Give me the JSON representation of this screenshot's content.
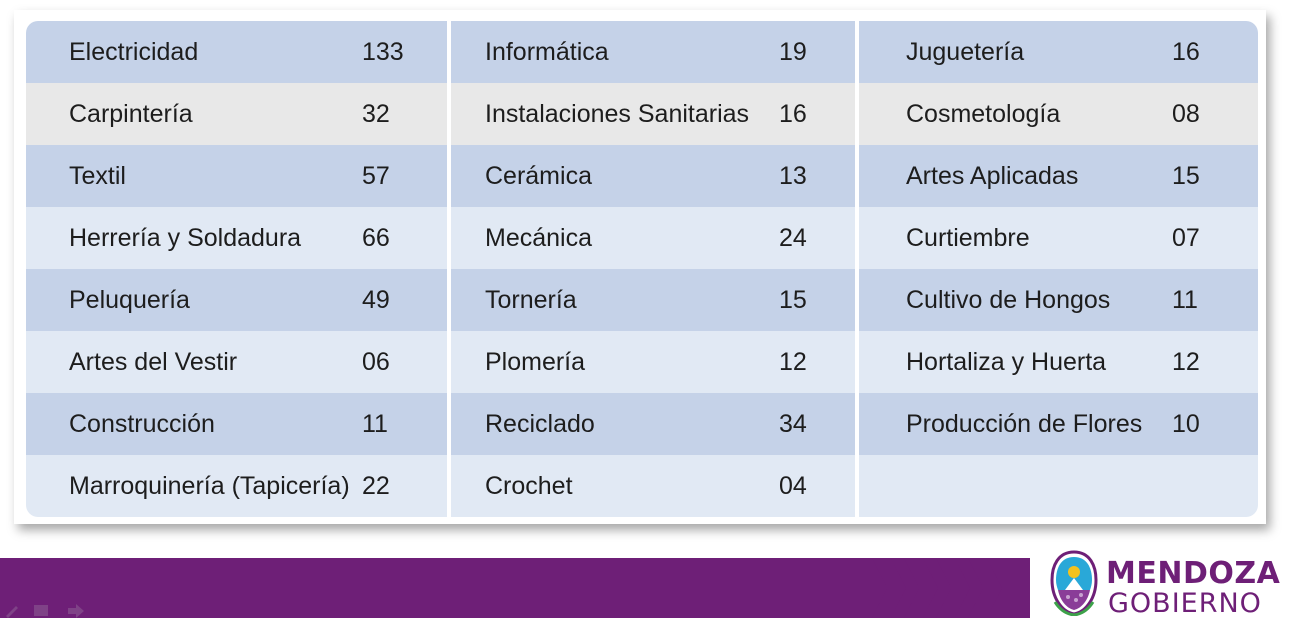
{
  "table": {
    "columns": [
      [
        {
          "name": "Electricidad",
          "value": "133",
          "shade": "dark"
        },
        {
          "name": "Carpintería",
          "value": "32",
          "shade": "grey"
        },
        {
          "name": "Textil",
          "value": "57",
          "shade": "dark"
        },
        {
          "name": "Herrería y Soldadura",
          "value": "66",
          "shade": "light"
        },
        {
          "name": "Peluquería",
          "value": "49",
          "shade": "dark"
        },
        {
          "name": "Artes del Vestir",
          "value": "06",
          "shade": "light"
        },
        {
          "name": "Construcción",
          "value": "11",
          "shade": "dark"
        },
        {
          "name": "Marroquinería (Tapicería)",
          "value": "22",
          "shade": "light"
        }
      ],
      [
        {
          "name": "Informática",
          "value": "19",
          "shade": "dark"
        },
        {
          "name": "Instalaciones Sanitarias",
          "value": "16",
          "shade": "grey"
        },
        {
          "name": "Cerámica",
          "value": "13",
          "shade": "dark"
        },
        {
          "name": "Mecánica",
          "value": "24",
          "shade": "light"
        },
        {
          "name": "Tornería",
          "value": "15",
          "shade": "dark"
        },
        {
          "name": "Plomería",
          "value": "12",
          "shade": "light"
        },
        {
          "name": "Reciclado",
          "value": "34",
          "shade": "dark"
        },
        {
          "name": "Crochet",
          "value": "04",
          "shade": "light"
        }
      ],
      [
        {
          "name": "Juguetería",
          "value": "16",
          "shade": "dark"
        },
        {
          "name": "Cosmetología",
          "value": "08",
          "shade": "grey"
        },
        {
          "name": "Artes Aplicadas",
          "value": "15",
          "shade": "dark"
        },
        {
          "name": "Curtiembre",
          "value": "07",
          "shade": "light"
        },
        {
          "name": "Cultivo de Hongos",
          "value": "11",
          "shade": "dark"
        },
        {
          "name": "Hortaliza y Huerta",
          "value": "12",
          "shade": "light"
        },
        {
          "name": "Producción de Flores",
          "value": "10",
          "shade": "dark"
        },
        {
          "name": "",
          "value": "",
          "shade": "light"
        }
      ]
    ]
  },
  "branding": {
    "title": "MENDOZA",
    "subtitle": "GOBIERNO",
    "color": "#6e1f77"
  },
  "colors": {
    "row_dark": "#c5d2e8",
    "row_grey": "#e8e8e8",
    "row_light": "#e1e9f4"
  }
}
